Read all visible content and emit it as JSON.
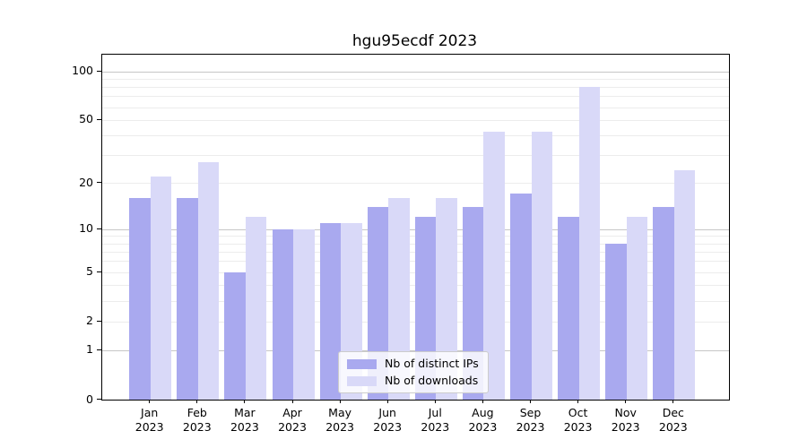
{
  "figure": {
    "title": "hgu95ecdf 2023"
  },
  "chart_data": {
    "type": "bar",
    "title": "hgu95ecdf 2023",
    "categories": [
      "Jan",
      "Feb",
      "Mar",
      "Apr",
      "May",
      "Jun",
      "Jul",
      "Aug",
      "Sep",
      "Oct",
      "Nov",
      "Dec"
    ],
    "x_tick_year": "2023",
    "series": [
      {
        "name": "Nb of distinct IPs",
        "color": "#a9a9ef",
        "values": [
          16,
          16,
          5,
          10,
          11,
          14,
          12,
          14,
          17,
          12,
          8,
          14
        ]
      },
      {
        "name": "Nb of downloads",
        "color": "#d9d9f8",
        "values": [
          22,
          27,
          12,
          10,
          11,
          16,
          16,
          42,
          42,
          80,
          12,
          24
        ]
      }
    ],
    "y_scale": "log1p",
    "ylim": [
      0,
      115
    ],
    "y_axis_tick_labels": [
      "100",
      "50",
      "20",
      "10",
      "5",
      "2",
      "1",
      "0"
    ],
    "y_axis_ticks": [
      100,
      50,
      20,
      10,
      5,
      2,
      1,
      0
    ],
    "y_major_gridlines": [
      1,
      10,
      100
    ],
    "y_minor_gridlines": [
      2,
      3,
      4,
      5,
      6,
      7,
      8,
      9,
      20,
      30,
      40,
      50,
      60,
      70,
      80,
      90
    ],
    "grid": true,
    "legend": {
      "position": "lower center",
      "entries": [
        "Nb of distinct IPs",
        "Nb of downloads"
      ]
    }
  },
  "colors": {
    "bar_distinct_ips": "#a9a9ef",
    "bar_downloads": "#d9d9f8",
    "grid_major": "#c6c6c6",
    "grid_minor": "#ececec",
    "axis": "#000000",
    "legend_border": "#cccccc"
  }
}
